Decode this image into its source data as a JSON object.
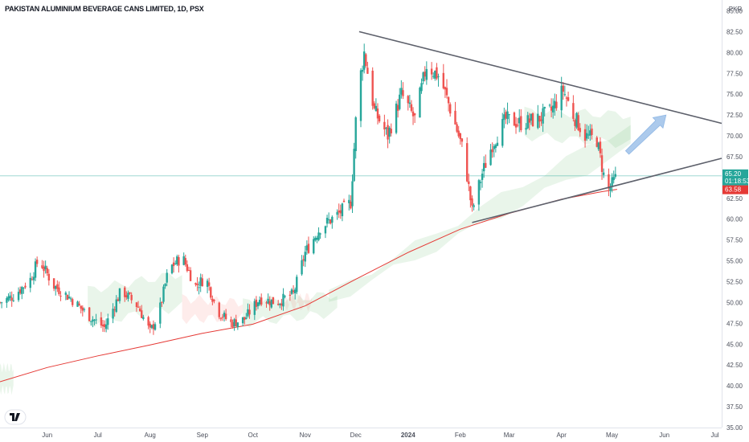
{
  "chart_data": {
    "type": "candlestick",
    "title": "PAKISTAN ALUMINIUM BEVERAGE CANS LIMITED, 1D, PSX",
    "currency": "PKR",
    "y_ticks": [
      35.0,
      37.5,
      40.0,
      42.5,
      45.0,
      47.5,
      50.0,
      52.5,
      55.0,
      57.5,
      60.0,
      62.5,
      65.0,
      67.5,
      70.0,
      72.5,
      75.0,
      77.5,
      80.0,
      82.5,
      85.0
    ],
    "y_tick_labels": [
      "35.00",
      "37.50",
      "40.00",
      "42.50",
      "45.00",
      "47.50",
      "50.00",
      "52.50",
      "55.00",
      "57.50",
      "60.00",
      "62.50",
      "65.00",
      "67.50",
      "70.00",
      "72.50",
      "75.00",
      "77.50",
      "80.00",
      "82.50",
      "85.00"
    ],
    "ylim": [
      35,
      86.3
    ],
    "x_range": [
      "2023-05-04",
      "2024-07-05"
    ],
    "x_ticks": [
      {
        "date": "2023-06-01",
        "label": "Jun",
        "bold": false
      },
      {
        "date": "2023-07-01",
        "label": "Jul",
        "bold": false
      },
      {
        "date": "2023-08-01",
        "label": "Aug",
        "bold": false
      },
      {
        "date": "2023-09-01",
        "label": "Sep",
        "bold": false
      },
      {
        "date": "2023-10-01",
        "label": "Oct",
        "bold": false
      },
      {
        "date": "2023-11-01",
        "label": "Nov",
        "bold": false
      },
      {
        "date": "2023-12-01",
        "label": "Dec",
        "bold": false
      },
      {
        "date": "2024-01-01",
        "label": "2024",
        "bold": true
      },
      {
        "date": "2024-02-01",
        "label": "Feb",
        "bold": false
      },
      {
        "date": "2024-03-01",
        "label": "Mar",
        "bold": false
      },
      {
        "date": "2024-04-01",
        "label": "Apr",
        "bold": false
      },
      {
        "date": "2024-05-01",
        "label": "May",
        "bold": false
      },
      {
        "date": "2024-06-01",
        "label": "Jun",
        "bold": false
      },
      {
        "date": "2024-07-01",
        "label": "Jul",
        "bold": false
      }
    ],
    "price_close": 65.2,
    "price_close_label": "65.20",
    "countdown": "01:18:53",
    "ma_value": 63.58,
    "ma_value_label": "63.58",
    "close_path": [
      [
        "2023-05-04",
        50.0
      ],
      [
        "2023-05-12",
        50.8
      ],
      [
        "2023-05-22",
        52.8
      ],
      [
        "2023-05-27",
        55.2
      ],
      [
        "2023-06-05",
        52.0
      ],
      [
        "2023-06-15",
        50.5
      ],
      [
        "2023-06-25",
        48.5
      ],
      [
        "2023-07-05",
        47.0
      ],
      [
        "2023-07-15",
        51.5
      ],
      [
        "2023-07-25",
        49.5
      ],
      [
        "2023-08-01",
        46.5
      ],
      [
        "2023-08-06",
        48.5
      ],
      [
        "2023-08-12",
        54.0
      ],
      [
        "2023-08-20",
        55.5
      ],
      [
        "2023-08-28",
        52.0
      ],
      [
        "2023-09-03",
        53.0
      ],
      [
        "2023-09-10",
        49.0
      ],
      [
        "2023-09-18",
        47.5
      ],
      [
        "2023-09-26",
        48.0
      ],
      [
        "2023-10-05",
        50.5
      ],
      [
        "2023-10-15",
        50.0
      ],
      [
        "2023-10-25",
        51.0
      ],
      [
        "2023-11-01",
        56.0
      ],
      [
        "2023-11-10",
        59.0
      ],
      [
        "2023-11-20",
        60.5
      ],
      [
        "2023-11-28",
        62.0
      ],
      [
        "2023-12-02",
        75.0
      ],
      [
        "2023-12-06",
        80.0
      ],
      [
        "2023-12-12",
        73.0
      ],
      [
        "2023-12-20",
        70.0
      ],
      [
        "2023-12-28",
        75.0
      ],
      [
        "2024-01-05",
        72.0
      ],
      [
        "2024-01-12",
        78.5
      ],
      [
        "2024-01-20",
        77.0
      ],
      [
        "2024-01-28",
        72.0
      ],
      [
        "2024-02-03",
        68.0
      ],
      [
        "2024-02-08",
        61.0
      ],
      [
        "2024-02-14",
        65.5
      ],
      [
        "2024-02-20",
        69.0
      ],
      [
        "2024-02-28",
        72.0
      ],
      [
        "2024-03-08",
        71.5
      ],
      [
        "2024-03-18",
        72.0
      ],
      [
        "2024-03-26",
        73.0
      ],
      [
        "2024-04-02",
        75.5
      ],
      [
        "2024-04-08",
        72.5
      ],
      [
        "2024-04-15",
        70.0
      ],
      [
        "2024-04-22",
        69.5
      ],
      [
        "2024-04-28",
        63.2
      ],
      [
        "2024-05-04",
        65.2
      ]
    ],
    "moving_average": [
      [
        "2023-05-04",
        40.5
      ],
      [
        "2023-06-01",
        42.2
      ],
      [
        "2023-07-01",
        43.6
      ],
      [
        "2023-08-01",
        44.9
      ],
      [
        "2023-09-01",
        46.3
      ],
      [
        "2023-10-01",
        47.4
      ],
      [
        "2023-11-01",
        49.6
      ],
      [
        "2023-12-01",
        52.8
      ],
      [
        "2024-01-01",
        56.0
      ],
      [
        "2024-02-01",
        58.8
      ],
      [
        "2024-03-01",
        60.7
      ],
      [
        "2024-04-01",
        62.4
      ],
      [
        "2024-04-25",
        63.3
      ],
      [
        "2024-05-04",
        63.58
      ]
    ],
    "trendlines": [
      {
        "name": "upper",
        "start": [
          "2023-12-03",
          82.5
        ],
        "end": [
          "2024-07-05",
          71.5
        ]
      },
      {
        "name": "lower",
        "start": [
          "2024-02-08",
          59.6
        ],
        "end": [
          "2024-07-05",
          67.3
        ]
      }
    ],
    "ichimoku_bands": [
      {
        "color": "green",
        "start": "2023-05-04",
        "end": "2023-05-12",
        "top": [
          42.2,
          42.2
        ],
        "bottom": [
          39.5,
          39.5
        ]
      },
      {
        "color": "green",
        "start": "2023-06-25",
        "end": "2023-08-20",
        "top": [
          51.5,
          53.5
        ],
        "bottom": [
          47.5,
          49.5
        ]
      },
      {
        "color": "red",
        "start": "2023-08-20",
        "end": "2023-09-25",
        "top": [
          50.5,
          50.0
        ],
        "bottom": [
          48.0,
          48.2
        ]
      },
      {
        "color": "green",
        "start": "2023-09-25",
        "end": "2023-11-20",
        "top": [
          50.0,
          51.0
        ],
        "bottom": [
          47.5,
          48.8
        ]
      },
      {
        "color": "red",
        "start": "2023-10-20",
        "end": "2023-11-05",
        "top": [
          50.2,
          50.8
        ],
        "bottom": [
          49.6,
          49.5
        ]
      },
      {
        "color": "green",
        "start": "2023-11-15",
        "end": "2024-05-12",
        "top": [
          51.0,
          71.5
        ],
        "bottom": [
          50.0,
          68.5
        ]
      },
      {
        "color": "green",
        "start": "2024-03-10",
        "end": "2024-05-12",
        "top": [
          73.0,
          72.5
        ],
        "bottom": [
          70.0,
          69.0
        ]
      }
    ],
    "arrow": {
      "from": [
        "2024-05-10",
        68.0
      ],
      "to": [
        "2024-06-02",
        72.5
      ]
    },
    "colors": {
      "up": "#26a69a",
      "down": "#ef5350",
      "trendline": "#5d606b",
      "moving_average": "#e53935",
      "cloud_green": "#4caf50",
      "cloud_red": "#f44336",
      "arrow": "#90b8e6",
      "price_line": "#26a69a"
    }
  }
}
